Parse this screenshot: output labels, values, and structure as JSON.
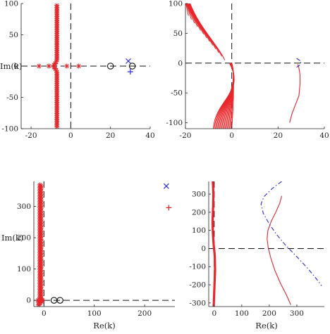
{
  "chart_data": [
    {
      "type": "scatter",
      "panel": "top-left",
      "xlim": [
        -25,
        40
      ],
      "ylim": [
        -100,
        100
      ],
      "xticks": [
        -20,
        0,
        20,
        40
      ],
      "yticks": [
        -100,
        -50,
        0,
        50,
        100
      ],
      "xlabel": "",
      "ylabel": "Im(k)",
      "ref_lines": {
        "x": 0,
        "y": 0
      },
      "series": [
        {
          "marker": "asterisk",
          "color": "#e8262b",
          "x": [
            -7,
            -7,
            -7,
            -7,
            -7,
            -7,
            -7,
            -7,
            -7,
            -7,
            -7,
            -7,
            -7,
            -7,
            -7,
            -7,
            -7,
            -7,
            -7,
            -7,
            -7,
            -7,
            -7,
            -7,
            -7,
            -7,
            -7,
            -7,
            -7,
            -7,
            -7.3,
            -7.8,
            -8.5,
            -7,
            -7,
            -7,
            -7,
            -7,
            -7,
            -7,
            -7,
            -7,
            -7,
            -7,
            -7,
            -7,
            -7,
            -7,
            -7,
            -7,
            -7,
            -7,
            -7,
            -7,
            -7,
            -7,
            -7,
            -7,
            -7,
            -7,
            -7,
            -7,
            -7,
            -7.3,
            -7.8,
            -8.5,
            -16,
            -11,
            -2,
            4
          ],
          "y": [
            97,
            94,
            91,
            88,
            85,
            82,
            79,
            76,
            73,
            70,
            67,
            64,
            61,
            58,
            55,
            52,
            49,
            46,
            43,
            40,
            37,
            34,
            31,
            28,
            25,
            22,
            19,
            16,
            13,
            10,
            7,
            4,
            2,
            -97,
            -94,
            -91,
            -88,
            -85,
            -82,
            -79,
            -76,
            -73,
            -70,
            -67,
            -64,
            -61,
            -58,
            -55,
            -52,
            -49,
            -46,
            -43,
            -40,
            -37,
            -34,
            -31,
            -28,
            -25,
            -22,
            -19,
            -16,
            -13,
            -10,
            -7,
            -4,
            -2,
            0,
            0,
            0,
            0
          ]
        },
        {
          "marker": "circle",
          "color": "#111111",
          "x": [
            20,
            31
          ],
          "y": [
            0,
            0
          ]
        },
        {
          "marker": "x",
          "color": "#2b2bd6",
          "x": [
            29
          ],
          "y": [
            8
          ]
        },
        {
          "marker": "plus",
          "color": "#2b2bd6",
          "x": [
            30
          ],
          "y": [
            -9
          ]
        }
      ]
    },
    {
      "type": "line",
      "panel": "top-right",
      "xlim": [
        -20,
        40
      ],
      "ylim": [
        -110,
        100
      ],
      "xticks": [
        -20,
        0,
        20,
        40
      ],
      "yticks": [
        -100,
        -50,
        0,
        50,
        100
      ],
      "xlabel": "",
      "ylabel": "",
      "ref_lines": {
        "x": 0,
        "y": 0
      },
      "series": [
        {
          "style": "solid",
          "color": "#e8262b",
          "family": "upper-left fan",
          "x_start": -20,
          "y_top": 100,
          "y_end_min": 5,
          "x_end_max": -3
        },
        {
          "style": "solid",
          "color": "#e8262b",
          "family": "lower fan",
          "x_left_min": -8,
          "x_right_max": 6,
          "y_bottom": -110,
          "y_top": 0
        },
        {
          "style": "solid",
          "color": "#e8262b",
          "x": [
            28.5,
            29,
            29.5,
            29.5,
            29,
            27.5,
            26,
            25
          ],
          "y": [
            -2,
            -8,
            -20,
            -35,
            -55,
            -70,
            -85,
            -100
          ]
        },
        {
          "style": "dash-dot",
          "color": "#2b2bd6",
          "x": [
            28,
            30,
            29.5,
            28
          ],
          "y": [
            8,
            3,
            -3,
            -7
          ]
        }
      ]
    },
    {
      "type": "scatter",
      "panel": "bottom-left",
      "xlim": [
        -20,
        260
      ],
      "ylim": [
        -20,
        380
      ],
      "xticks": [
        0,
        100,
        200
      ],
      "yticks": [
        0,
        100,
        200,
        300
      ],
      "xlabel": "Re(k)",
      "ylabel": "Im(k)",
      "ref_lines": {
        "x": 0,
        "y": 0
      },
      "series": [
        {
          "marker": "asterisk",
          "color": "#e8262b",
          "column_x": -7,
          "y_from": -15,
          "y_to": 370
        },
        {
          "marker": "circle",
          "color": "#111111",
          "x": [
            20,
            32
          ],
          "y": [
            0,
            0
          ]
        },
        {
          "marker": "x",
          "color": "#2b2bd6",
          "x": [
            243
          ],
          "y": [
            365
          ]
        },
        {
          "marker": "plus",
          "color": "#e8262b",
          "x": [
            248
          ],
          "y": [
            296
          ]
        }
      ]
    },
    {
      "type": "line",
      "panel": "bottom-right",
      "xlim": [
        -20,
        400
      ],
      "ylim": [
        -320,
        370
      ],
      "xticks": [
        0,
        100,
        200,
        300
      ],
      "yticks": [
        -300,
        -200,
        -100,
        0,
        100,
        200,
        300
      ],
      "xlabel": "Re(k)",
      "ylabel": "",
      "ref_lines": {
        "x": 0,
        "y": 0
      },
      "series": [
        {
          "style": "solid",
          "color": "#e8262b",
          "x": [
            245,
            238,
            225,
            207,
            195,
            192,
            196,
            206,
            220,
            240,
            262,
            278
          ],
          "y": [
            290,
            250,
            205,
            150,
            100,
            55,
            5,
            -55,
            -120,
            -190,
            -255,
            -310
          ]
        },
        {
          "style": "dash-dot",
          "color": "#2b2bd6",
          "x": [
            245,
            210,
            180,
            170,
            178,
            198,
            225,
            258,
            300,
            340,
            370,
            390
          ],
          "y": [
            370,
            330,
            285,
            245,
            195,
            140,
            80,
            20,
            -45,
            -110,
            -165,
            -205
          ]
        },
        {
          "style": "solid",
          "color": "#e8262b",
          "family": "cluster",
          "x": [
            -5,
            -3,
            -4,
            -6,
            -5,
            -2,
            2,
            3,
            -2
          ],
          "y": [
            370,
            300,
            230,
            150,
            90,
            20,
            -40,
            -120,
            -320
          ]
        }
      ]
    }
  ]
}
